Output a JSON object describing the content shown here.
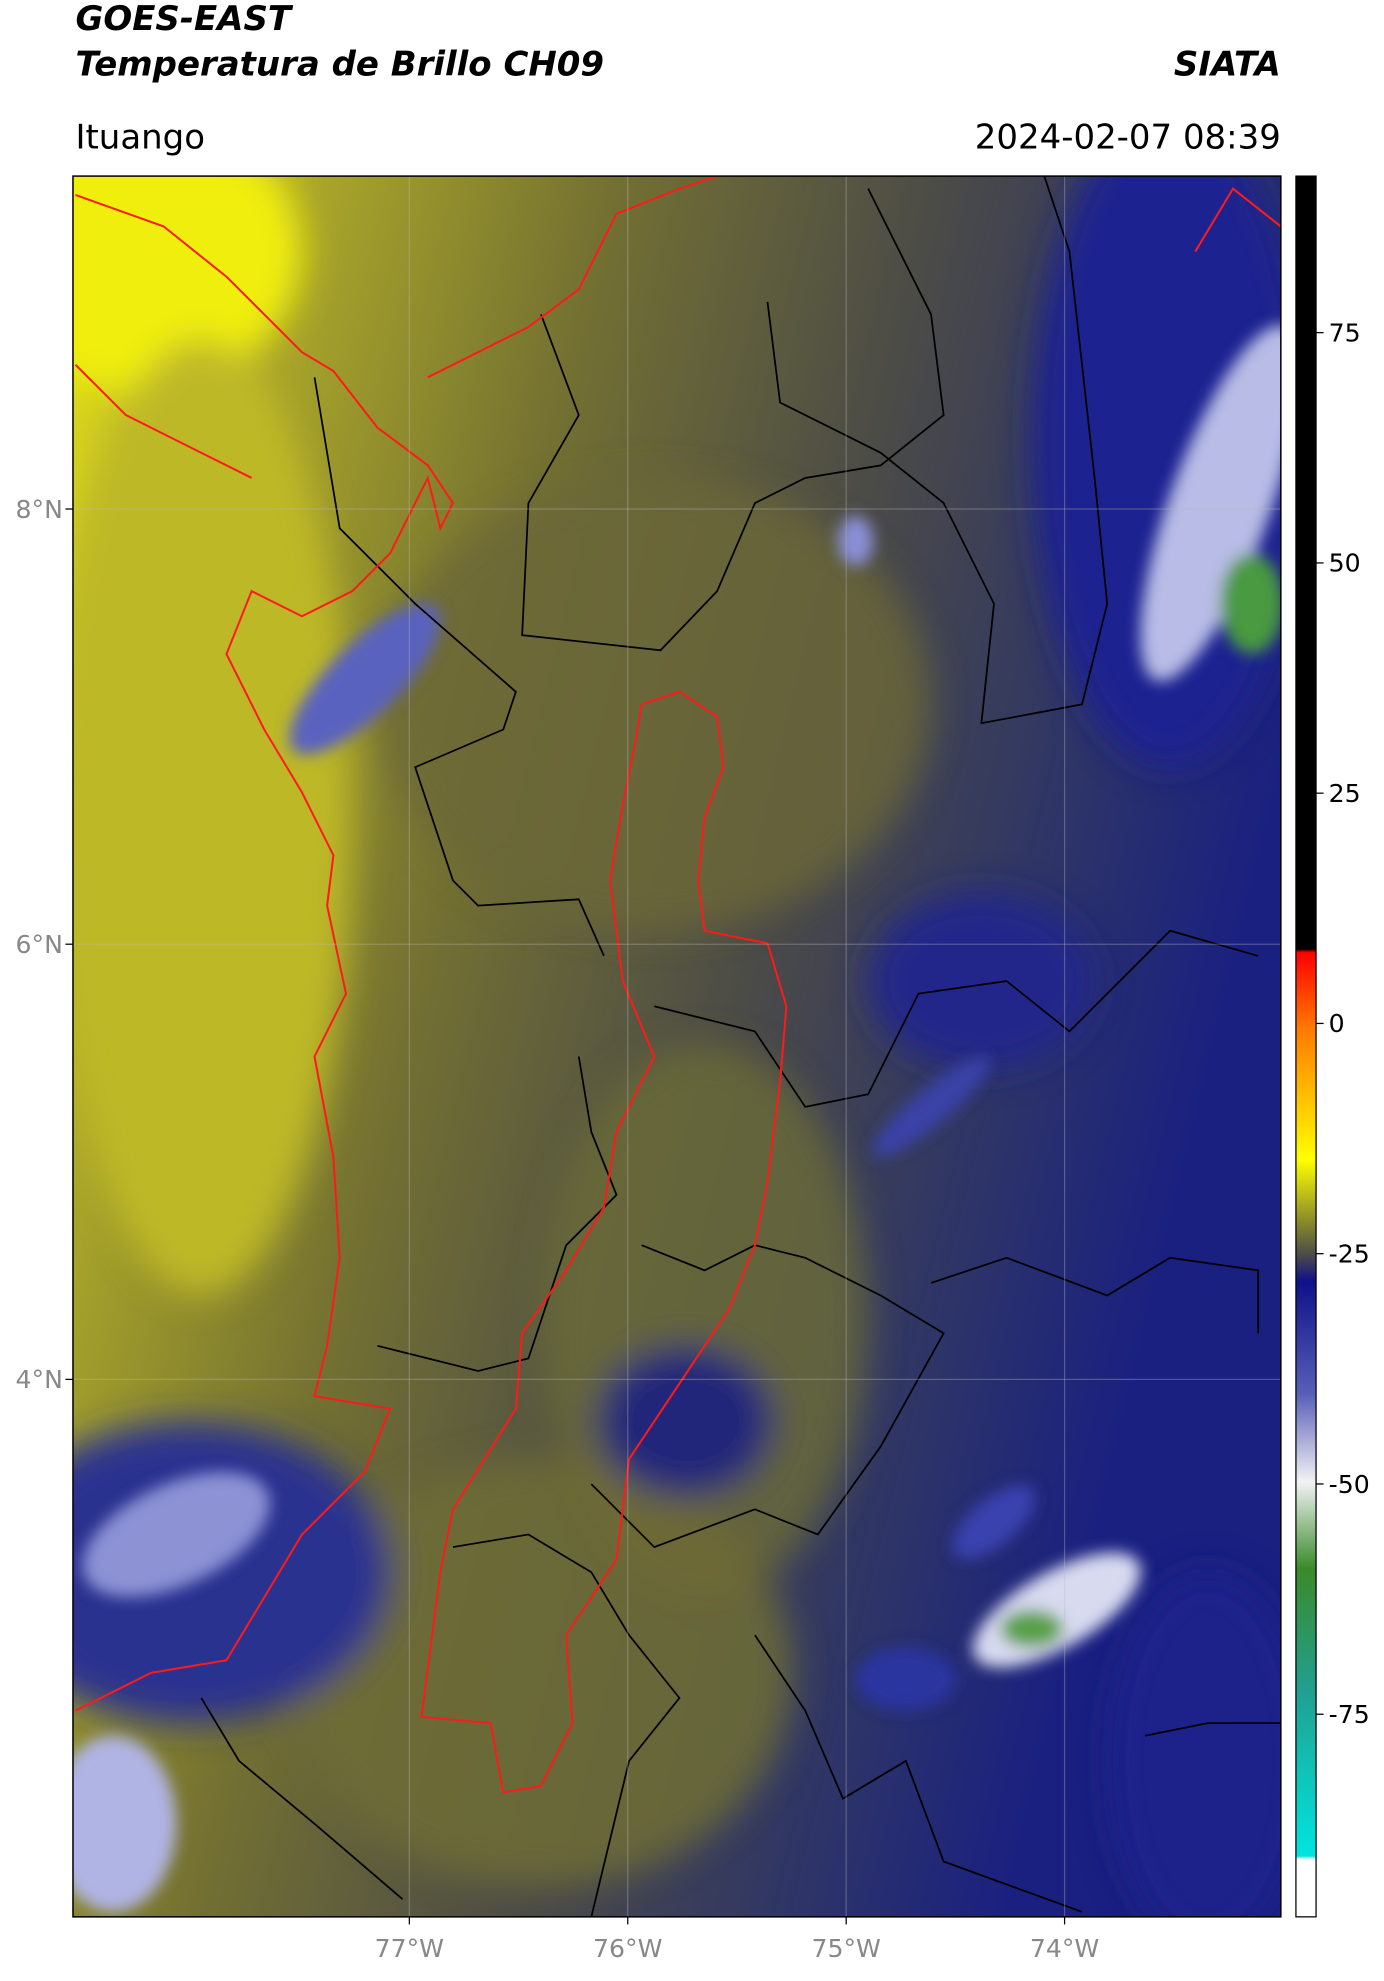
{
  "header": {
    "title": "GOES-EAST",
    "subtitle": "Temperatura de Brillo CH09",
    "brand": "SIATA",
    "location": "Ituango",
    "datetime": "2024-02-07 08:39"
  },
  "map": {
    "lon_lim": [
      -78.54,
      -73.01
    ],
    "lat_lim": [
      1.53,
      9.53
    ],
    "lon_ticks": [
      {
        "value": -77,
        "label": "77°W"
      },
      {
        "value": -76,
        "label": "76°W"
      },
      {
        "value": -75,
        "label": "75°W"
      },
      {
        "value": -74,
        "label": "74°W"
      }
    ],
    "lat_ticks": [
      {
        "value": 8,
        "label": "8°N"
      },
      {
        "value": 6,
        "label": "6°N"
      },
      {
        "value": 4,
        "label": "4°N"
      }
    ],
    "grid": true
  },
  "colorbar": {
    "lim": [
      -97,
      92
    ],
    "ticks": [
      75,
      50,
      25,
      0,
      -25,
      -50,
      -75
    ]
  }
}
